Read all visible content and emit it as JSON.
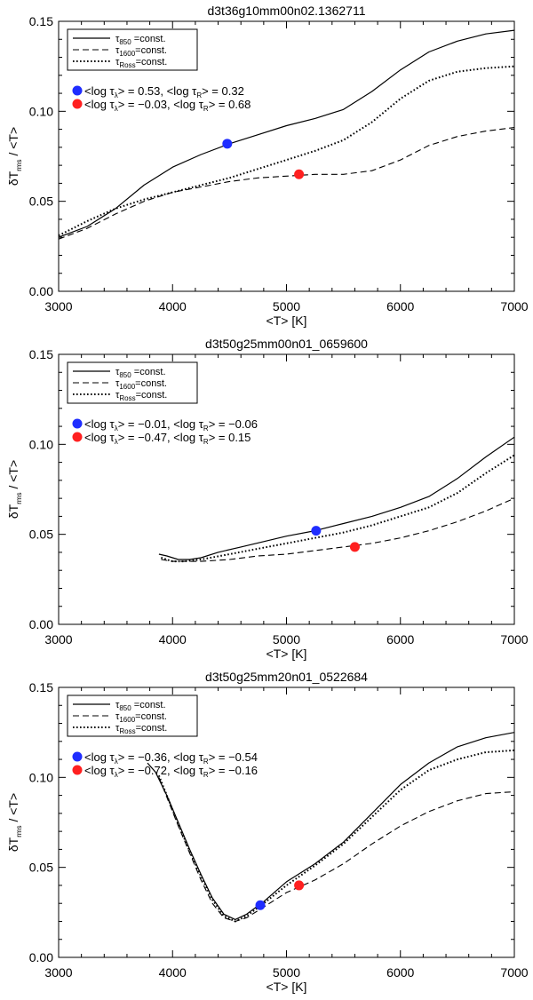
{
  "chart_data": [
    {
      "type": "line",
      "title": "d3t36g10mm00n02.1362711",
      "xlabel": "<T> [K]",
      "ylabel_main": "δT",
      "ylabel_sub": "rms",
      "ylabel_tail": " / <T>",
      "xlim": [
        3000,
        7000
      ],
      "ylim": [
        0.0,
        0.15
      ],
      "xticks": [
        "3000",
        "4000",
        "5000",
        "6000",
        "7000"
      ],
      "yticks": [
        "0.00",
        "0.05",
        "0.10",
        "0.15"
      ],
      "legend_position": "top-left",
      "series": [
        {
          "name": "τ850 =const.",
          "sym": "τ",
          "sub": "850",
          "rest": " =const.",
          "dash": "solid",
          "x": [
            3000,
            3250,
            3500,
            3750,
            4000,
            4250,
            4500,
            4750,
            5000,
            5250,
            5500,
            5750,
            6000,
            6250,
            6500,
            6750,
            7000
          ],
          "y": [
            0.03,
            0.036,
            0.046,
            0.059,
            0.069,
            0.076,
            0.082,
            0.087,
            0.092,
            0.096,
            0.101,
            0.111,
            0.123,
            0.133,
            0.139,
            0.143,
            0.145
          ]
        },
        {
          "name": "τ1600=const.",
          "sym": "τ",
          "sub": "1600",
          "rest": "=const.",
          "dash": "dashed",
          "x": [
            3000,
            3250,
            3500,
            3750,
            4000,
            4250,
            4500,
            4750,
            5000,
            5250,
            5500,
            5750,
            6000,
            6250,
            6500,
            6750,
            7000
          ],
          "y": [
            0.029,
            0.035,
            0.043,
            0.05,
            0.055,
            0.058,
            0.061,
            0.063,
            0.064,
            0.065,
            0.065,
            0.067,
            0.073,
            0.081,
            0.086,
            0.089,
            0.091
          ]
        },
        {
          "name": "τRoss=const.",
          "sym": "τ",
          "sub": "Ross",
          "rest": "=const.",
          "dash": "dotted",
          "x": [
            3000,
            3250,
            3500,
            3750,
            4000,
            4250,
            4500,
            4750,
            5000,
            5250,
            5500,
            5750,
            6000,
            6250,
            6500,
            6750,
            7000
          ],
          "y": [
            0.031,
            0.039,
            0.046,
            0.051,
            0.055,
            0.059,
            0.063,
            0.068,
            0.073,
            0.078,
            0.084,
            0.094,
            0.107,
            0.117,
            0.122,
            0.124,
            0.125
          ]
        }
      ],
      "markers": [
        {
          "color": "#1f2dff",
          "x": 4480,
          "y": 0.082,
          "line1": "<log τ",
          "lsub": "λ",
          "line2": "> =   0.53,   <log τ",
          "rsub": "R",
          "line3": "> =   0.32"
        },
        {
          "color": "#ff2020",
          "x": 5110,
          "y": 0.065,
          "line1": "<log τ",
          "lsub": "λ",
          "line2": "> = −0.03,   <log τ",
          "rsub": "R",
          "line3": "> =   0.68"
        }
      ]
    },
    {
      "type": "line",
      "title": "d3t50g25mm00n01_0659600",
      "xlabel": "<T> [K]",
      "ylabel_main": "δT",
      "ylabel_sub": "rms",
      "ylabel_tail": " / <T>",
      "xlim": [
        3000,
        7000
      ],
      "ylim": [
        0.0,
        0.15
      ],
      "xticks": [
        "3000",
        "4000",
        "5000",
        "6000",
        "7000"
      ],
      "yticks": [
        "0.00",
        "0.05",
        "0.10",
        "0.15"
      ],
      "legend_position": "top-left",
      "series": [
        {
          "name": "τ850 =const.",
          "sym": "τ",
          "sub": "850",
          "rest": " =const.",
          "dash": "solid",
          "x": [
            3880,
            3950,
            4050,
            4150,
            4250,
            4400,
            4600,
            4800,
            5000,
            5250,
            5500,
            5750,
            6000,
            6250,
            6500,
            6750,
            7000
          ],
          "y": [
            0.039,
            0.038,
            0.036,
            0.036,
            0.037,
            0.04,
            0.043,
            0.046,
            0.049,
            0.052,
            0.056,
            0.06,
            0.065,
            0.071,
            0.081,
            0.093,
            0.104
          ]
        },
        {
          "name": "τ1600=const.",
          "sym": "τ",
          "sub": "1600",
          "rest": "=const.",
          "dash": "dashed",
          "x": [
            3900,
            4000,
            4100,
            4250,
            4500,
            4750,
            5000,
            5250,
            5500,
            5750,
            6000,
            6250,
            6500,
            6750,
            7000
          ],
          "y": [
            0.036,
            0.035,
            0.035,
            0.035,
            0.036,
            0.038,
            0.039,
            0.041,
            0.043,
            0.045,
            0.048,
            0.052,
            0.057,
            0.063,
            0.07
          ]
        },
        {
          "name": "τRoss=const.",
          "sym": "τ",
          "sub": "Ross",
          "rest": "=const.",
          "dash": "dotted",
          "x": [
            3900,
            4000,
            4100,
            4250,
            4500,
            4750,
            5000,
            5250,
            5500,
            5750,
            6000,
            6250,
            6500,
            6750,
            7000
          ],
          "y": [
            0.037,
            0.035,
            0.035,
            0.036,
            0.039,
            0.042,
            0.045,
            0.048,
            0.051,
            0.055,
            0.06,
            0.065,
            0.073,
            0.084,
            0.094
          ]
        }
      ],
      "markers": [
        {
          "color": "#1f2dff",
          "x": 5260,
          "y": 0.052,
          "line1": "<log τ",
          "lsub": "λ",
          "line2": "> = −0.01,   <log τ",
          "rsub": "R",
          "line3": "> = −0.06"
        },
        {
          "color": "#ff2020",
          "x": 5600,
          "y": 0.043,
          "line1": "<log τ",
          "lsub": "λ",
          "line2": "> = −0.47,   <log τ",
          "rsub": "R",
          "line3": "> =   0.15"
        }
      ]
    },
    {
      "type": "line",
      "title": "d3t50g25mm20n01_0522684",
      "xlabel": "<T> [K]",
      "ylabel_main": "δT",
      "ylabel_sub": "rms",
      "ylabel_tail": " / <T>",
      "xlim": [
        3000,
        7000
      ],
      "ylim": [
        0.0,
        0.15
      ],
      "xticks": [
        "3000",
        "4000",
        "5000",
        "6000",
        "7000"
      ],
      "yticks": [
        "0.00",
        "0.05",
        "0.10",
        "0.15"
      ],
      "legend_position": "top-left",
      "series": [
        {
          "name": "τ850 =const.",
          "sym": "τ",
          "sub": "850",
          "rest": " =const.",
          "dash": "solid",
          "x": [
            3780,
            3850,
            3950,
            4050,
            4150,
            4250,
            4350,
            4450,
            4550,
            4650,
            4800,
            5000,
            5250,
            5500,
            5750,
            6000,
            6250,
            6500,
            6750,
            7000
          ],
          "y": [
            0.108,
            0.103,
            0.09,
            0.075,
            0.06,
            0.046,
            0.033,
            0.024,
            0.021,
            0.024,
            0.031,
            0.042,
            0.052,
            0.064,
            0.08,
            0.096,
            0.108,
            0.117,
            0.122,
            0.125
          ]
        },
        {
          "name": "τ1600=const.",
          "sym": "τ",
          "sub": "1600",
          "rest": "=const.",
          "dash": "dashed",
          "x": [
            3880,
            3950,
            4050,
            4150,
            4250,
            4350,
            4450,
            4550,
            4650,
            4800,
            5000,
            5250,
            5500,
            5750,
            6000,
            6250,
            6500,
            6750,
            7000
          ],
          "y": [
            0.1,
            0.089,
            0.073,
            0.058,
            0.043,
            0.03,
            0.022,
            0.02,
            0.022,
            0.028,
            0.036,
            0.043,
            0.052,
            0.063,
            0.073,
            0.081,
            0.087,
            0.091,
            0.092
          ]
        },
        {
          "name": "τRoss=const.",
          "sym": "τ",
          "sub": "Ross",
          "rest": "=const.",
          "dash": "dotted",
          "x": [
            3880,
            3950,
            4050,
            4150,
            4250,
            4350,
            4450,
            4550,
            4650,
            4800,
            5000,
            5250,
            5500,
            5750,
            6000,
            6250,
            6500,
            6750,
            7000
          ],
          "y": [
            0.101,
            0.09,
            0.074,
            0.059,
            0.045,
            0.032,
            0.023,
            0.02,
            0.023,
            0.03,
            0.04,
            0.051,
            0.063,
            0.078,
            0.093,
            0.104,
            0.11,
            0.114,
            0.115
          ]
        }
      ],
      "markers": [
        {
          "color": "#1f2dff",
          "x": 4770,
          "y": 0.029,
          "line1": "<log τ",
          "lsub": "λ",
          "line2": "> = −0.36,   <log τ",
          "rsub": "R",
          "line3": "> = −0.54"
        },
        {
          "color": "#ff2020",
          "x": 5110,
          "y": 0.04,
          "line1": "<log τ",
          "lsub": "λ",
          "line2": "> = −0.72,   <log τ",
          "rsub": "R",
          "line3": "> = −0.16"
        }
      ]
    }
  ]
}
